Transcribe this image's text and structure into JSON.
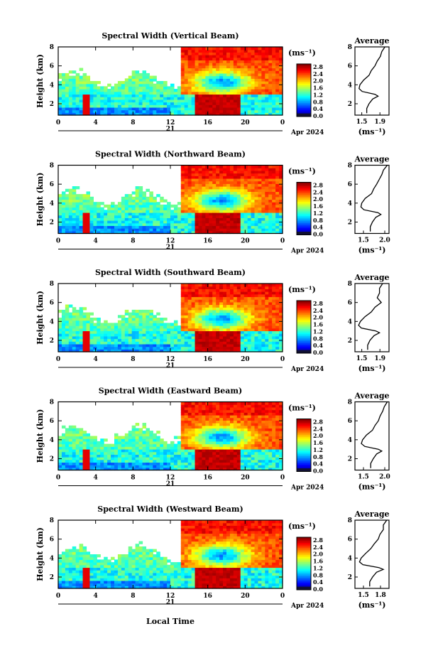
{
  "figure": {
    "xlabel_bottom": "Local Time",
    "date_label": "Apr 2024",
    "day_label": "21"
  },
  "chart_data": [
    {
      "type": "heatmap",
      "title": "Spectral Width (Vertical Beam)",
      "xlabel": "Local Time",
      "ylabel": "Height (km)",
      "x_ticks": [
        "0",
        "4",
        "8",
        "12",
        "16",
        "20",
        "0"
      ],
      "xlim": [
        0,
        24
      ],
      "y_ticks": [
        "2",
        "4",
        "6",
        "8"
      ],
      "ylim": [
        0.8,
        8
      ],
      "colorbar": {
        "unit": "(ms⁻¹)",
        "ticks": [
          "0.0",
          "0.4",
          "0.8",
          "1.2",
          "1.6",
          "2.0",
          "2.4",
          "2.8"
        ],
        "range": [
          0,
          3.0
        ]
      },
      "features": {
        "low_layer_top_km": 3.0,
        "high_width_band": {
          "x": [
            14.5,
            19.5
          ],
          "y": [
            0.8,
            3.0
          ],
          "value": 2.8
        },
        "upper_cloud_start_h": 13,
        "upper_cloud_value": 2.4
      },
      "profile": {
        "title": "Average",
        "xlabel": "(ms⁻¹)",
        "x_ticks": [
          "1.5",
          "1.9"
        ],
        "xlim": [
          1.35,
          2.1
        ],
        "ylim": [
          0.8,
          8
        ],
        "y_ticks": [
          "2",
          "4",
          "6",
          "8"
        ],
        "heights": [
          1.0,
          1.5,
          2.0,
          2.5,
          2.8,
          3.0,
          3.3,
          3.6,
          4.0,
          4.5,
          5.0,
          5.5,
          6.0,
          6.5,
          7.0,
          7.5,
          8.0
        ],
        "values": [
          1.6,
          1.62,
          1.65,
          1.75,
          1.85,
          1.8,
          1.5,
          1.45,
          1.45,
          1.55,
          1.65,
          1.72,
          1.78,
          1.85,
          1.9,
          1.95,
          2.0
        ]
      }
    },
    {
      "type": "heatmap",
      "title": "Spectral Width (Northward Beam)",
      "xlabel": "Local Time",
      "ylabel": "Height (km)",
      "x_ticks": [
        "0",
        "4",
        "8",
        "12",
        "16",
        "20",
        "0"
      ],
      "xlim": [
        0,
        24
      ],
      "y_ticks": [
        "2",
        "4",
        "6",
        "8"
      ],
      "ylim": [
        0.8,
        8
      ],
      "colorbar": {
        "unit": "(ms⁻¹)",
        "ticks": [
          "0.0",
          "0.4",
          "0.8",
          "1.2",
          "1.6",
          "2.0",
          "2.4",
          "2.8"
        ],
        "range": [
          0,
          3.0
        ]
      },
      "features": {
        "low_layer_top_km": 3.0,
        "high_width_band": {
          "x": [
            14.5,
            19.5
          ],
          "y": [
            0.8,
            3.0
          ],
          "value": 2.8
        },
        "upper_cloud_start_h": 13,
        "upper_cloud_value": 2.4
      },
      "profile": {
        "title": "Average",
        "xlabel": "(ms⁻¹)",
        "x_ticks": [
          "1.5",
          "2.0"
        ],
        "xlim": [
          1.3,
          2.1
        ],
        "ylim": [
          0.8,
          8
        ],
        "y_ticks": [
          "2",
          "4",
          "6",
          "8"
        ],
        "heights": [
          1.0,
          1.5,
          2.0,
          2.5,
          2.8,
          3.0,
          3.3,
          3.6,
          4.0,
          4.5,
          5.0,
          5.5,
          6.0,
          6.5,
          7.0,
          7.5,
          8.0
        ],
        "values": [
          1.65,
          1.67,
          1.7,
          1.8,
          1.9,
          1.85,
          1.5,
          1.45,
          1.45,
          1.55,
          1.68,
          1.75,
          1.8,
          1.88,
          1.92,
          1.98,
          2.05
        ]
      }
    },
    {
      "type": "heatmap",
      "title": "Spectral Width (Southward Beam)",
      "xlabel": "Local Time",
      "ylabel": "Height (km)",
      "x_ticks": [
        "0",
        "4",
        "8",
        "12",
        "16",
        "20",
        "0"
      ],
      "xlim": [
        0,
        24
      ],
      "y_ticks": [
        "2",
        "4",
        "6",
        "8"
      ],
      "ylim": [
        0.8,
        8
      ],
      "colorbar": {
        "unit": "(ms⁻¹)",
        "ticks": [
          "0.0",
          "0.4",
          "0.8",
          "1.2",
          "1.6",
          "2.0",
          "2.4",
          "2.8"
        ],
        "range": [
          0,
          3.0
        ]
      },
      "features": {
        "low_layer_top_km": 3.0,
        "high_width_band": {
          "x": [
            14.5,
            19.5
          ],
          "y": [
            0.8,
            3.0
          ],
          "value": 2.8
        },
        "upper_cloud_start_h": 13,
        "upper_cloud_value": 2.4
      },
      "profile": {
        "title": "Average",
        "xlabel": "(ms⁻¹)",
        "x_ticks": [
          "1.5",
          "1.9"
        ],
        "xlim": [
          1.35,
          2.1
        ],
        "ylim": [
          0.8,
          8
        ],
        "y_ticks": [
          "2",
          "4",
          "6",
          "8"
        ],
        "heights": [
          1.0,
          1.5,
          2.0,
          2.5,
          2.8,
          3.0,
          3.3,
          3.6,
          4.0,
          4.5,
          5.0,
          5.5,
          6.0,
          6.5,
          7.0,
          7.5,
          8.0
        ],
        "values": [
          1.62,
          1.64,
          1.67,
          1.78,
          1.88,
          1.82,
          1.48,
          1.44,
          1.46,
          1.58,
          1.7,
          1.8,
          1.92,
          1.85,
          1.88,
          1.9,
          1.95
        ]
      }
    },
    {
      "type": "heatmap",
      "title": "Spectral Width (Eastward Beam)",
      "xlabel": "Local Time",
      "ylabel": "Height (km)",
      "x_ticks": [
        "0",
        "4",
        "8",
        "12",
        "16",
        "20",
        "0"
      ],
      "xlim": [
        0,
        24
      ],
      "y_ticks": [
        "2",
        "4",
        "6",
        "8"
      ],
      "ylim": [
        0.8,
        8
      ],
      "colorbar": {
        "unit": "(ms⁻¹)",
        "ticks": [
          "0.0",
          "0.4",
          "0.8",
          "1.2",
          "1.6",
          "2.0",
          "2.4",
          "2.8"
        ],
        "range": [
          0,
          3.0
        ]
      },
      "features": {
        "low_layer_top_km": 3.0,
        "high_width_band": {
          "x": [
            14.5,
            19.5
          ],
          "y": [
            0.8,
            3.0
          ],
          "value": 2.8
        },
        "upper_cloud_start_h": 13,
        "upper_cloud_value": 2.4
      },
      "profile": {
        "title": "Average",
        "xlabel": "(ms⁻¹)",
        "x_ticks": [
          "1.5",
          "2.0"
        ],
        "xlim": [
          1.3,
          2.1
        ],
        "ylim": [
          0.8,
          8
        ],
        "y_ticks": [
          "2",
          "4",
          "6",
          "8"
        ],
        "heights": [
          1.0,
          1.5,
          2.0,
          2.5,
          2.8,
          3.0,
          3.3,
          3.6,
          4.0,
          4.5,
          5.0,
          5.5,
          6.0,
          6.5,
          7.0,
          7.5,
          8.0
        ],
        "values": [
          1.66,
          1.68,
          1.72,
          1.82,
          1.92,
          1.86,
          1.52,
          1.46,
          1.47,
          1.58,
          1.7,
          1.78,
          1.84,
          1.9,
          1.94,
          2.0,
          2.05
        ]
      }
    },
    {
      "type": "heatmap",
      "title": "Spectral Width (Westward Beam)",
      "xlabel": "Local Time",
      "ylabel": "Height (km)",
      "x_ticks": [
        "0",
        "4",
        "8",
        "12",
        "16",
        "20",
        "0"
      ],
      "xlim": [
        0,
        24
      ],
      "y_ticks": [
        "2",
        "4",
        "6",
        "8"
      ],
      "ylim": [
        0.8,
        8
      ],
      "colorbar": {
        "unit": "(ms⁻¹)",
        "ticks": [
          "0.0",
          "0.4",
          "0.8",
          "1.2",
          "1.6",
          "2.0",
          "2.4",
          "2.8"
        ],
        "range": [
          0,
          3.0
        ]
      },
      "features": {
        "low_layer_top_km": 3.0,
        "high_width_band": {
          "x": [
            14.5,
            19.5
          ],
          "y": [
            0.8,
            3.0
          ],
          "value": 2.8
        },
        "upper_cloud_start_h": 13,
        "upper_cloud_value": 2.4
      },
      "profile": {
        "title": "Average",
        "xlabel": "(ms⁻¹)",
        "x_ticks": [
          "1.5",
          "1.8"
        ],
        "xlim": [
          1.35,
          1.95
        ],
        "ylim": [
          0.8,
          8
        ],
        "y_ticks": [
          "2",
          "4",
          "6",
          "8"
        ],
        "heights": [
          1.0,
          1.5,
          2.0,
          2.5,
          2.8,
          3.0,
          3.3,
          3.6,
          4.0,
          4.5,
          5.0,
          5.5,
          6.0,
          6.5,
          7.0,
          7.5,
          8.0
        ],
        "values": [
          1.6,
          1.62,
          1.65,
          1.74,
          1.84,
          1.78,
          1.48,
          1.44,
          1.45,
          1.55,
          1.62,
          1.7,
          1.75,
          1.8,
          1.84,
          1.86,
          1.9
        ]
      }
    }
  ]
}
